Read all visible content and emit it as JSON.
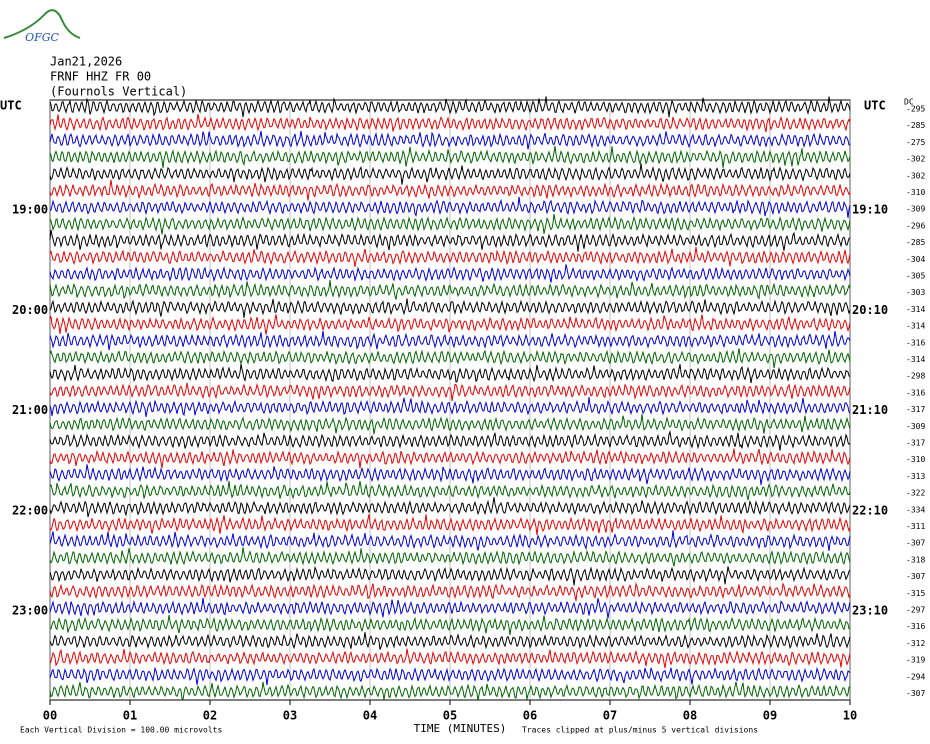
{
  "logo": "OFGC",
  "header": {
    "date": "Jan21,2026",
    "station": "FRNF HHZ FR 00",
    "description": "(Fournols Vertical)"
  },
  "left_axis": {
    "label": "UTC",
    "times": [
      "19:00",
      "20:00",
      "21:00",
      "22:00",
      "23:00"
    ]
  },
  "right_axis": {
    "label": "UTC",
    "dc_label": "DC",
    "times": [
      "19:10",
      "20:10",
      "21:10",
      "22:10",
      "23:10"
    ],
    "offsets": [
      -295,
      -285,
      -275,
      -302,
      -302,
      -310,
      -309,
      -296,
      -285,
      -304,
      -305,
      -303,
      -314,
      -314,
      -316,
      -314,
      -298,
      -316,
      -317,
      -309,
      -317,
      -310,
      -313,
      -322,
      -334,
      -311,
      -307,
      -318,
      -307,
      -315,
      -297,
      -316,
      -312,
      -319,
      -294,
      -307
    ]
  },
  "x_axis": {
    "ticks": [
      "00",
      "01",
      "02",
      "03",
      "04",
      "05",
      "06",
      "07",
      "08",
      "09",
      "10"
    ],
    "label": "TIME (MINUTES)"
  },
  "footer": {
    "scale": "Each Vertical Division =  100.00 microvolts",
    "clipping": "Traces clipped at plus/minus 5 vertical divisions"
  }
}
